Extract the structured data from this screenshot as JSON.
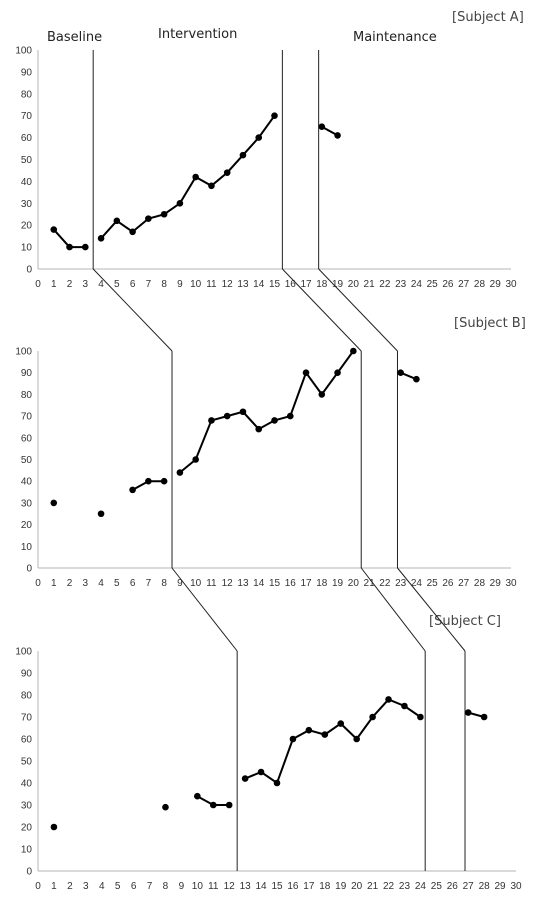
{
  "phase_labels": [
    "Baseline",
    "Intervention",
    "Maintenance"
  ],
  "chart_data": {
    "type": "line",
    "xlim": [
      0,
      30
    ],
    "ylim": [
      0,
      100
    ],
    "x_ticks": [
      0,
      1,
      2,
      3,
      4,
      5,
      6,
      7,
      8,
      9,
      10,
      11,
      12,
      13,
      14,
      15,
      16,
      17,
      18,
      19,
      20,
      21,
      22,
      23,
      24,
      25,
      26,
      27,
      28,
      29,
      30
    ],
    "y_ticks": [
      0,
      10,
      20,
      30,
      40,
      50,
      60,
      70,
      80,
      90,
      100
    ],
    "grid": false,
    "panels": [
      {
        "subject": "[Subject A]",
        "phase_lines": [
          3.5,
          15.5,
          17.8
        ],
        "segments": [
          {
            "x": [
              1,
              2,
              3
            ],
            "y": [
              18,
              10,
              10
            ]
          },
          {
            "x": [
              4,
              5,
              6,
              7,
              8,
              9,
              10,
              11,
              12,
              13,
              14,
              15
            ],
            "y": [
              14,
              22,
              17,
              23,
              25,
              30,
              42,
              38,
              44,
              52,
              60,
              70
            ]
          },
          {
            "x": [
              18,
              19
            ],
            "y": [
              65,
              61
            ]
          }
        ]
      },
      {
        "subject": "[Subject B]",
        "phase_lines": [
          8.5,
          20.5,
          22.8
        ],
        "segments": [
          {
            "x": [
              1
            ],
            "y": [
              30
            ]
          },
          {
            "x": [
              4
            ],
            "y": [
              25
            ]
          },
          {
            "x": [
              6,
              7,
              8
            ],
            "y": [
              36,
              40,
              40
            ]
          },
          {
            "x": [
              9,
              10,
              11,
              12,
              13,
              14,
              15,
              16,
              17,
              18,
              19,
              20
            ],
            "y": [
              44,
              50,
              68,
              70,
              72,
              64,
              68,
              70,
              90,
              80,
              90,
              100
            ]
          },
          {
            "x": [
              23,
              24
            ],
            "y": [
              90,
              87
            ]
          }
        ]
      },
      {
        "subject": "[Subject C]",
        "phase_lines": [
          12.5,
          24.3,
          26.8
        ],
        "segments": [
          {
            "x": [
              1
            ],
            "y": [
              20
            ]
          },
          {
            "x": [
              8
            ],
            "y": [
              29
            ]
          },
          {
            "x": [
              10,
              11,
              12
            ],
            "y": [
              34,
              30,
              30
            ]
          },
          {
            "x": [
              13,
              14,
              15,
              16,
              17,
              18,
              19,
              20,
              21,
              22,
              23,
              24
            ],
            "y": [
              42,
              45,
              40,
              60,
              64,
              62,
              67,
              60,
              70,
              78,
              75,
              70
            ]
          },
          {
            "x": [
              27,
              28
            ],
            "y": [
              72,
              70
            ]
          }
        ]
      }
    ]
  }
}
